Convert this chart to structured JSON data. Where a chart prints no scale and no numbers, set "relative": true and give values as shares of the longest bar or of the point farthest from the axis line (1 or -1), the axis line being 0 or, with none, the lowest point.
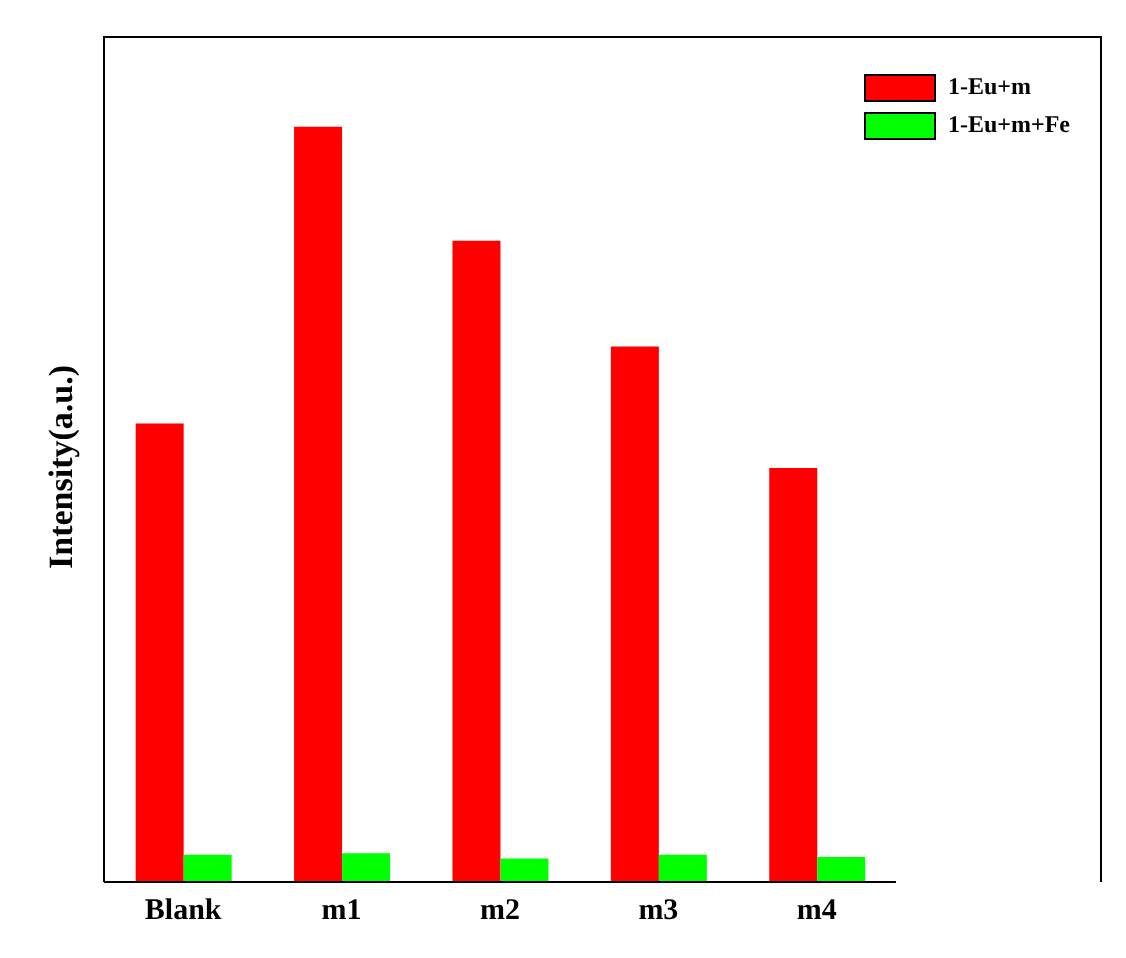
{
  "chart_data": {
    "type": "bar",
    "relative": true,
    "ylabel": "Intensity(a.u.)",
    "categories": [
      "Blank",
      "m1",
      "m2",
      "m3",
      "m4"
    ],
    "series": [
      {
        "name": "1-Eu+m",
        "color": "#ff0000",
        "values": [
          0.607,
          1,
          0.849,
          0.709,
          0.548
        ]
      },
      {
        "name": "1-Eu+m+Fe",
        "color": "#00ff00",
        "values": [
          0.036,
          0.038,
          0.031,
          0.036,
          0.033
        ]
      }
    ],
    "legend": "top right"
  }
}
